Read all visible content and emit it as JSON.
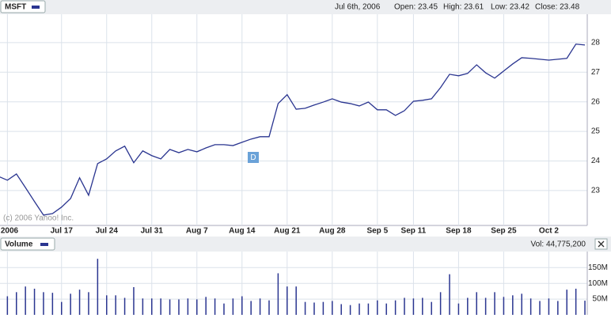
{
  "header": {
    "symbol": "MSFT",
    "date": "Jul 6th, 2006",
    "open": "Open: 23.45",
    "high": "High: 23.61",
    "low": "Low: 23.42",
    "close": "Close: 23.48",
    "copyright": "(c) 2006 Yahoo! Inc.",
    "annotation": "D"
  },
  "chart_data": [
    {
      "type": "line",
      "color": "#2a3590",
      "grid": true,
      "x": [
        0,
        1,
        2,
        3,
        4,
        5,
        6,
        7,
        8,
        9,
        10,
        11,
        12,
        13,
        14,
        15,
        16,
        17,
        18,
        19,
        20,
        21,
        22,
        23,
        24,
        25,
        26,
        27,
        28,
        29,
        30,
        31,
        32,
        33,
        34,
        35,
        36,
        37,
        38,
        39,
        40,
        41,
        42,
        43,
        44,
        45,
        46,
        47,
        48,
        49,
        50,
        51,
        52,
        53,
        54,
        55,
        56,
        57,
        58,
        59,
        60,
        61,
        62,
        63,
        64,
        65
      ],
      "values": [
        23.48,
        23.35,
        23.56,
        23.1,
        22.63,
        22.17,
        22.22,
        22.44,
        22.73,
        23.43,
        22.84,
        23.91,
        24.07,
        24.34,
        24.5,
        23.94,
        24.34,
        24.18,
        24.07,
        24.39,
        24.28,
        24.39,
        24.31,
        24.44,
        24.55,
        24.55,
        24.52,
        24.63,
        24.74,
        24.82,
        24.82,
        25.94,
        26.24,
        25.75,
        25.78,
        25.89,
        25.99,
        26.1,
        25.99,
        25.94,
        25.86,
        25.99,
        25.73,
        25.73,
        25.54,
        25.7,
        26.02,
        26.05,
        26.1,
        26.48,
        26.93,
        26.88,
        26.96,
        27.25,
        26.98,
        26.8,
        27.04,
        27.28,
        27.49,
        27.47,
        27.44,
        27.41,
        27.44,
        27.47,
        27.95,
        27.92
      ],
      "xlim": [
        0.18,
        65.26
      ],
      "ylim": [
        21.82,
        28.96
      ],
      "yticks": [
        23,
        24,
        25,
        26,
        27,
        28
      ],
      "xticks": [
        {
          "value": 1,
          "label": "2006"
        },
        {
          "value": 7,
          "label": "Jul 17"
        },
        {
          "value": 12,
          "label": "Jul 24"
        },
        {
          "value": 17,
          "label": "Jul 31"
        },
        {
          "value": 22,
          "label": "Aug 7"
        },
        {
          "value": 27,
          "label": "Aug 14"
        },
        {
          "value": 32,
          "label": "Aug 21"
        },
        {
          "value": 37,
          "label": "Aug 28"
        },
        {
          "value": 42,
          "label": "Sep 5"
        },
        {
          "value": 46,
          "label": "Sep 11"
        },
        {
          "value": 51,
          "label": "Sep 18"
        },
        {
          "value": 56,
          "label": "Sep 25"
        },
        {
          "value": 61,
          "label": "Oct 2"
        }
      ]
    },
    {
      "type": "bar",
      "title": "Volume",
      "label": "Vol: 44,775,200",
      "color": "#2a3590",
      "grid": true,
      "x": [
        0,
        1,
        2,
        3,
        4,
        5,
        6,
        7,
        8,
        9,
        10,
        11,
        12,
        13,
        14,
        15,
        16,
        17,
        18,
        19,
        20,
        21,
        22,
        23,
        24,
        25,
        26,
        27,
        28,
        29,
        30,
        31,
        32,
        33,
        34,
        35,
        36,
        37,
        38,
        39,
        40,
        41,
        42,
        43,
        44,
        45,
        46,
        47,
        48,
        49,
        50,
        51,
        52,
        53,
        54,
        55,
        56,
        57,
        58,
        59,
        60,
        61,
        62,
        63,
        64,
        65
      ],
      "values": [
        44.78,
        59,
        72,
        90,
        83,
        72,
        70,
        41,
        67,
        80,
        72,
        178,
        62,
        62,
        54,
        88,
        52,
        52,
        52,
        49,
        49,
        52,
        49,
        57,
        52,
        36,
        52,
        59,
        44,
        52,
        46,
        132,
        90,
        90,
        41,
        39,
        41,
        44,
        34,
        31,
        36,
        36,
        46,
        36,
        46,
        54,
        52,
        54,
        41,
        72,
        129,
        36,
        54,
        72,
        54,
        72,
        57,
        62,
        67,
        52,
        44,
        52,
        44,
        80,
        83,
        45
      ],
      "xlim": [
        0.18,
        65.26
      ],
      "ylim": [
        0,
        201
      ],
      "yticks": [
        {
          "value": 50,
          "label": "50M"
        },
        {
          "value": 100,
          "label": "100M"
        },
        {
          "value": 150,
          "label": "150M"
        }
      ]
    }
  ]
}
